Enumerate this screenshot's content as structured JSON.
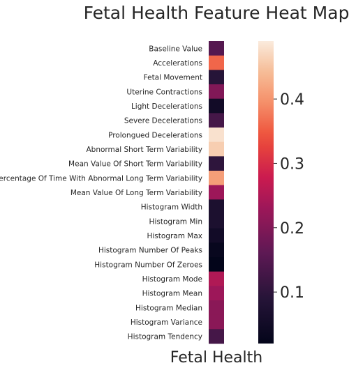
{
  "chart_data": {
    "type": "heatmap",
    "title": "Fetal Health Feature Heat Map",
    "x_categories": [
      "Fetal Health"
    ],
    "y_categories": [
      "Baseline Value",
      "Accelerations",
      "Fetal Movement",
      "Uterine Contractions",
      "Light Decelerations",
      "Severe Decelerations",
      "Prolongued Decelerations",
      "Abnormal Short Term Variability",
      "Mean Value Of Short Term Variability",
      "Percentage Of Time With Abnormal Long Term Variability",
      "Mean Value Of Long Term Variability",
      "Histogram Width",
      "Histogram Min",
      "Histogram Max",
      "Histogram Number Of Peaks",
      "Histogram Number Of Zeroes",
      "Histogram Mode",
      "Histogram Mean",
      "Histogram Median",
      "Histogram Variance",
      "Histogram Tendency"
    ],
    "values": [
      0.15,
      0.36,
      0.09,
      0.2,
      0.05,
      0.13,
      0.48,
      0.46,
      0.1,
      0.41,
      0.23,
      0.07,
      0.07,
      0.05,
      0.03,
      0.02,
      0.25,
      0.23,
      0.21,
      0.21,
      0.13
    ],
    "colorbar": {
      "range": [
        0.02,
        0.49
      ],
      "ticks": [
        0.1,
        0.2,
        0.3,
        0.4
      ],
      "tick_labels": [
        "0.1",
        "0.2",
        "0.3",
        "0.4"
      ],
      "colormap": "rocket"
    },
    "xlabel": "Fetal Health",
    "ylabel": ""
  }
}
